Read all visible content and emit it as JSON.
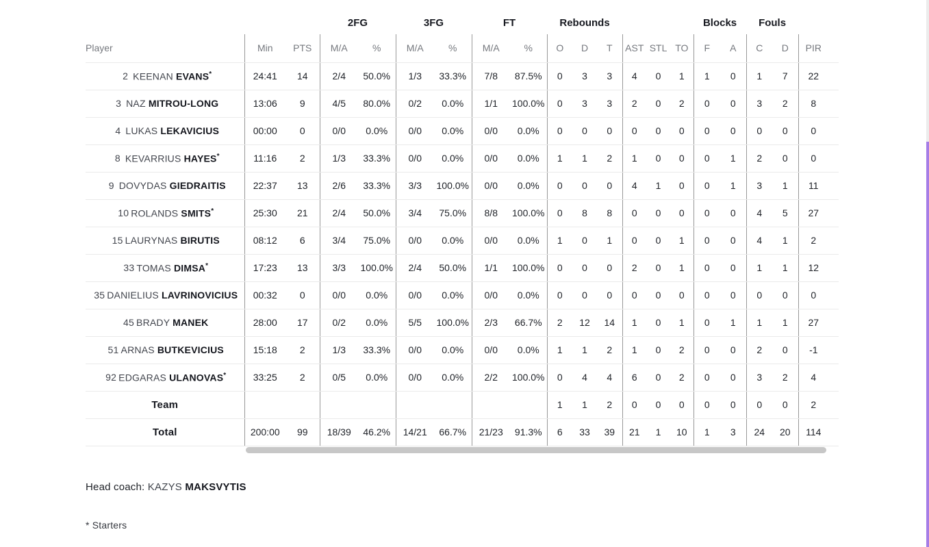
{
  "colors": {
    "accent_scrollbar": "#a57de6",
    "table_scrollbar_thumb": "#c7c7c7",
    "divider": "#979797",
    "row_border": "#eaeaea"
  },
  "table": {
    "starter_mark": "*",
    "group_headers": [
      "2FG",
      "3FG",
      "FT",
      "Rebounds",
      "Blocks",
      "Fouls"
    ],
    "columns": [
      "Player",
      "Min",
      "PTS",
      "M/A",
      "%",
      "M/A",
      "%",
      "M/A",
      "%",
      "O",
      "D",
      "T",
      "AST",
      "STL",
      "TO",
      "F",
      "A",
      "C",
      "D",
      "PIR",
      "+/-"
    ],
    "rows": [
      {
        "number": "2",
        "first": "KEENAN",
        "last": "EVANS",
        "starter": true,
        "stats": [
          "24:41",
          "14",
          "2/4",
          "50.0%",
          "1/3",
          "33.3%",
          "7/8",
          "87.5%",
          "0",
          "3",
          "3",
          "4",
          "0",
          "1",
          "1",
          "0",
          "1",
          "7",
          "22",
          ""
        ]
      },
      {
        "number": "3",
        "first": "NAZ",
        "last": "MITROU-LONG",
        "starter": false,
        "stats": [
          "13:06",
          "9",
          "4/5",
          "80.0%",
          "0/2",
          "0.0%",
          "1/1",
          "100.0%",
          "0",
          "3",
          "3",
          "2",
          "0",
          "2",
          "0",
          "0",
          "3",
          "2",
          "8",
          ""
        ]
      },
      {
        "number": "4",
        "first": "LUKAS",
        "last": "LEKAVICIUS",
        "starter": false,
        "stats": [
          "00:00",
          "0",
          "0/0",
          "0.0%",
          "0/0",
          "0.0%",
          "0/0",
          "0.0%",
          "0",
          "0",
          "0",
          "0",
          "0",
          "0",
          "0",
          "0",
          "0",
          "0",
          "0",
          ""
        ]
      },
      {
        "number": "8",
        "first": "KEVARRIUS",
        "last": "HAYES",
        "starter": true,
        "stats": [
          "11:16",
          "2",
          "1/3",
          "33.3%",
          "0/0",
          "0.0%",
          "0/0",
          "0.0%",
          "1",
          "1",
          "2",
          "1",
          "0",
          "0",
          "0",
          "1",
          "2",
          "0",
          "0",
          ""
        ]
      },
      {
        "number": "9",
        "first": "DOVYDAS",
        "last": "GIEDRAITIS",
        "starter": false,
        "stats": [
          "22:37",
          "13",
          "2/6",
          "33.3%",
          "3/3",
          "100.0%",
          "0/0",
          "0.0%",
          "0",
          "0",
          "0",
          "4",
          "1",
          "0",
          "0",
          "1",
          "3",
          "1",
          "11",
          ""
        ]
      },
      {
        "number": "10",
        "first": "ROLANDS",
        "last": "SMITS",
        "starter": true,
        "stats": [
          "25:30",
          "21",
          "2/4",
          "50.0%",
          "3/4",
          "75.0%",
          "8/8",
          "100.0%",
          "0",
          "8",
          "8",
          "0",
          "0",
          "0",
          "0",
          "0",
          "4",
          "5",
          "27",
          ""
        ]
      },
      {
        "number": "15",
        "first": "LAURYNAS",
        "last": "BIRUTIS",
        "starter": false,
        "stats": [
          "08:12",
          "6",
          "3/4",
          "75.0%",
          "0/0",
          "0.0%",
          "0/0",
          "0.0%",
          "1",
          "0",
          "1",
          "0",
          "0",
          "1",
          "0",
          "0",
          "4",
          "1",
          "2",
          ""
        ]
      },
      {
        "number": "33",
        "first": "TOMAS",
        "last": "DIMSA",
        "starter": true,
        "stats": [
          "17:23",
          "13",
          "3/3",
          "100.0%",
          "2/4",
          "50.0%",
          "1/1",
          "100.0%",
          "0",
          "0",
          "0",
          "2",
          "0",
          "1",
          "0",
          "0",
          "1",
          "1",
          "12",
          ""
        ]
      },
      {
        "number": "35",
        "first": "DANIELIUS",
        "last": "LAVRINOVICIUS",
        "starter": false,
        "stats": [
          "00:32",
          "0",
          "0/0",
          "0.0%",
          "0/0",
          "0.0%",
          "0/0",
          "0.0%",
          "0",
          "0",
          "0",
          "0",
          "0",
          "0",
          "0",
          "0",
          "0",
          "0",
          "0",
          ""
        ]
      },
      {
        "number": "45",
        "first": "BRADY",
        "last": "MANEK",
        "starter": false,
        "stats": [
          "28:00",
          "17",
          "0/2",
          "0.0%",
          "5/5",
          "100.0%",
          "2/3",
          "66.7%",
          "2",
          "12",
          "14",
          "1",
          "0",
          "1",
          "0",
          "1",
          "1",
          "1",
          "27",
          ""
        ]
      },
      {
        "number": "51",
        "first": "ARNAS",
        "last": "BUTKEVICIUS",
        "starter": false,
        "stats": [
          "15:18",
          "2",
          "1/3",
          "33.3%",
          "0/0",
          "0.0%",
          "0/0",
          "0.0%",
          "1",
          "1",
          "2",
          "1",
          "0",
          "2",
          "0",
          "0",
          "2",
          "0",
          "-1",
          ""
        ]
      },
      {
        "number": "92",
        "first": "EDGARAS",
        "last": "ULANOVAS",
        "starter": true,
        "stats": [
          "33:25",
          "2",
          "0/5",
          "0.0%",
          "0/0",
          "0.0%",
          "2/2",
          "100.0%",
          "0",
          "4",
          "4",
          "6",
          "0",
          "2",
          "0",
          "0",
          "3",
          "2",
          "4",
          ""
        ]
      },
      {
        "label": "Team",
        "stats": [
          "",
          "",
          "",
          "",
          "",
          "",
          "",
          "",
          "1",
          "1",
          "2",
          "0",
          "0",
          "0",
          "0",
          "0",
          "0",
          "0",
          "2",
          ""
        ]
      },
      {
        "label": "Total",
        "stats": [
          "200:00",
          "99",
          "18/39",
          "46.2%",
          "14/21",
          "66.7%",
          "21/23",
          "91.3%",
          "6",
          "33",
          "39",
          "21",
          "1",
          "10",
          "1",
          "3",
          "24",
          "20",
          "114",
          ""
        ]
      }
    ]
  },
  "footer": {
    "head_coach_label": "Head coach:",
    "coach_first": "KAZYS",
    "coach_last": "MAKSVYTIS",
    "starters_note": "* Starters"
  }
}
